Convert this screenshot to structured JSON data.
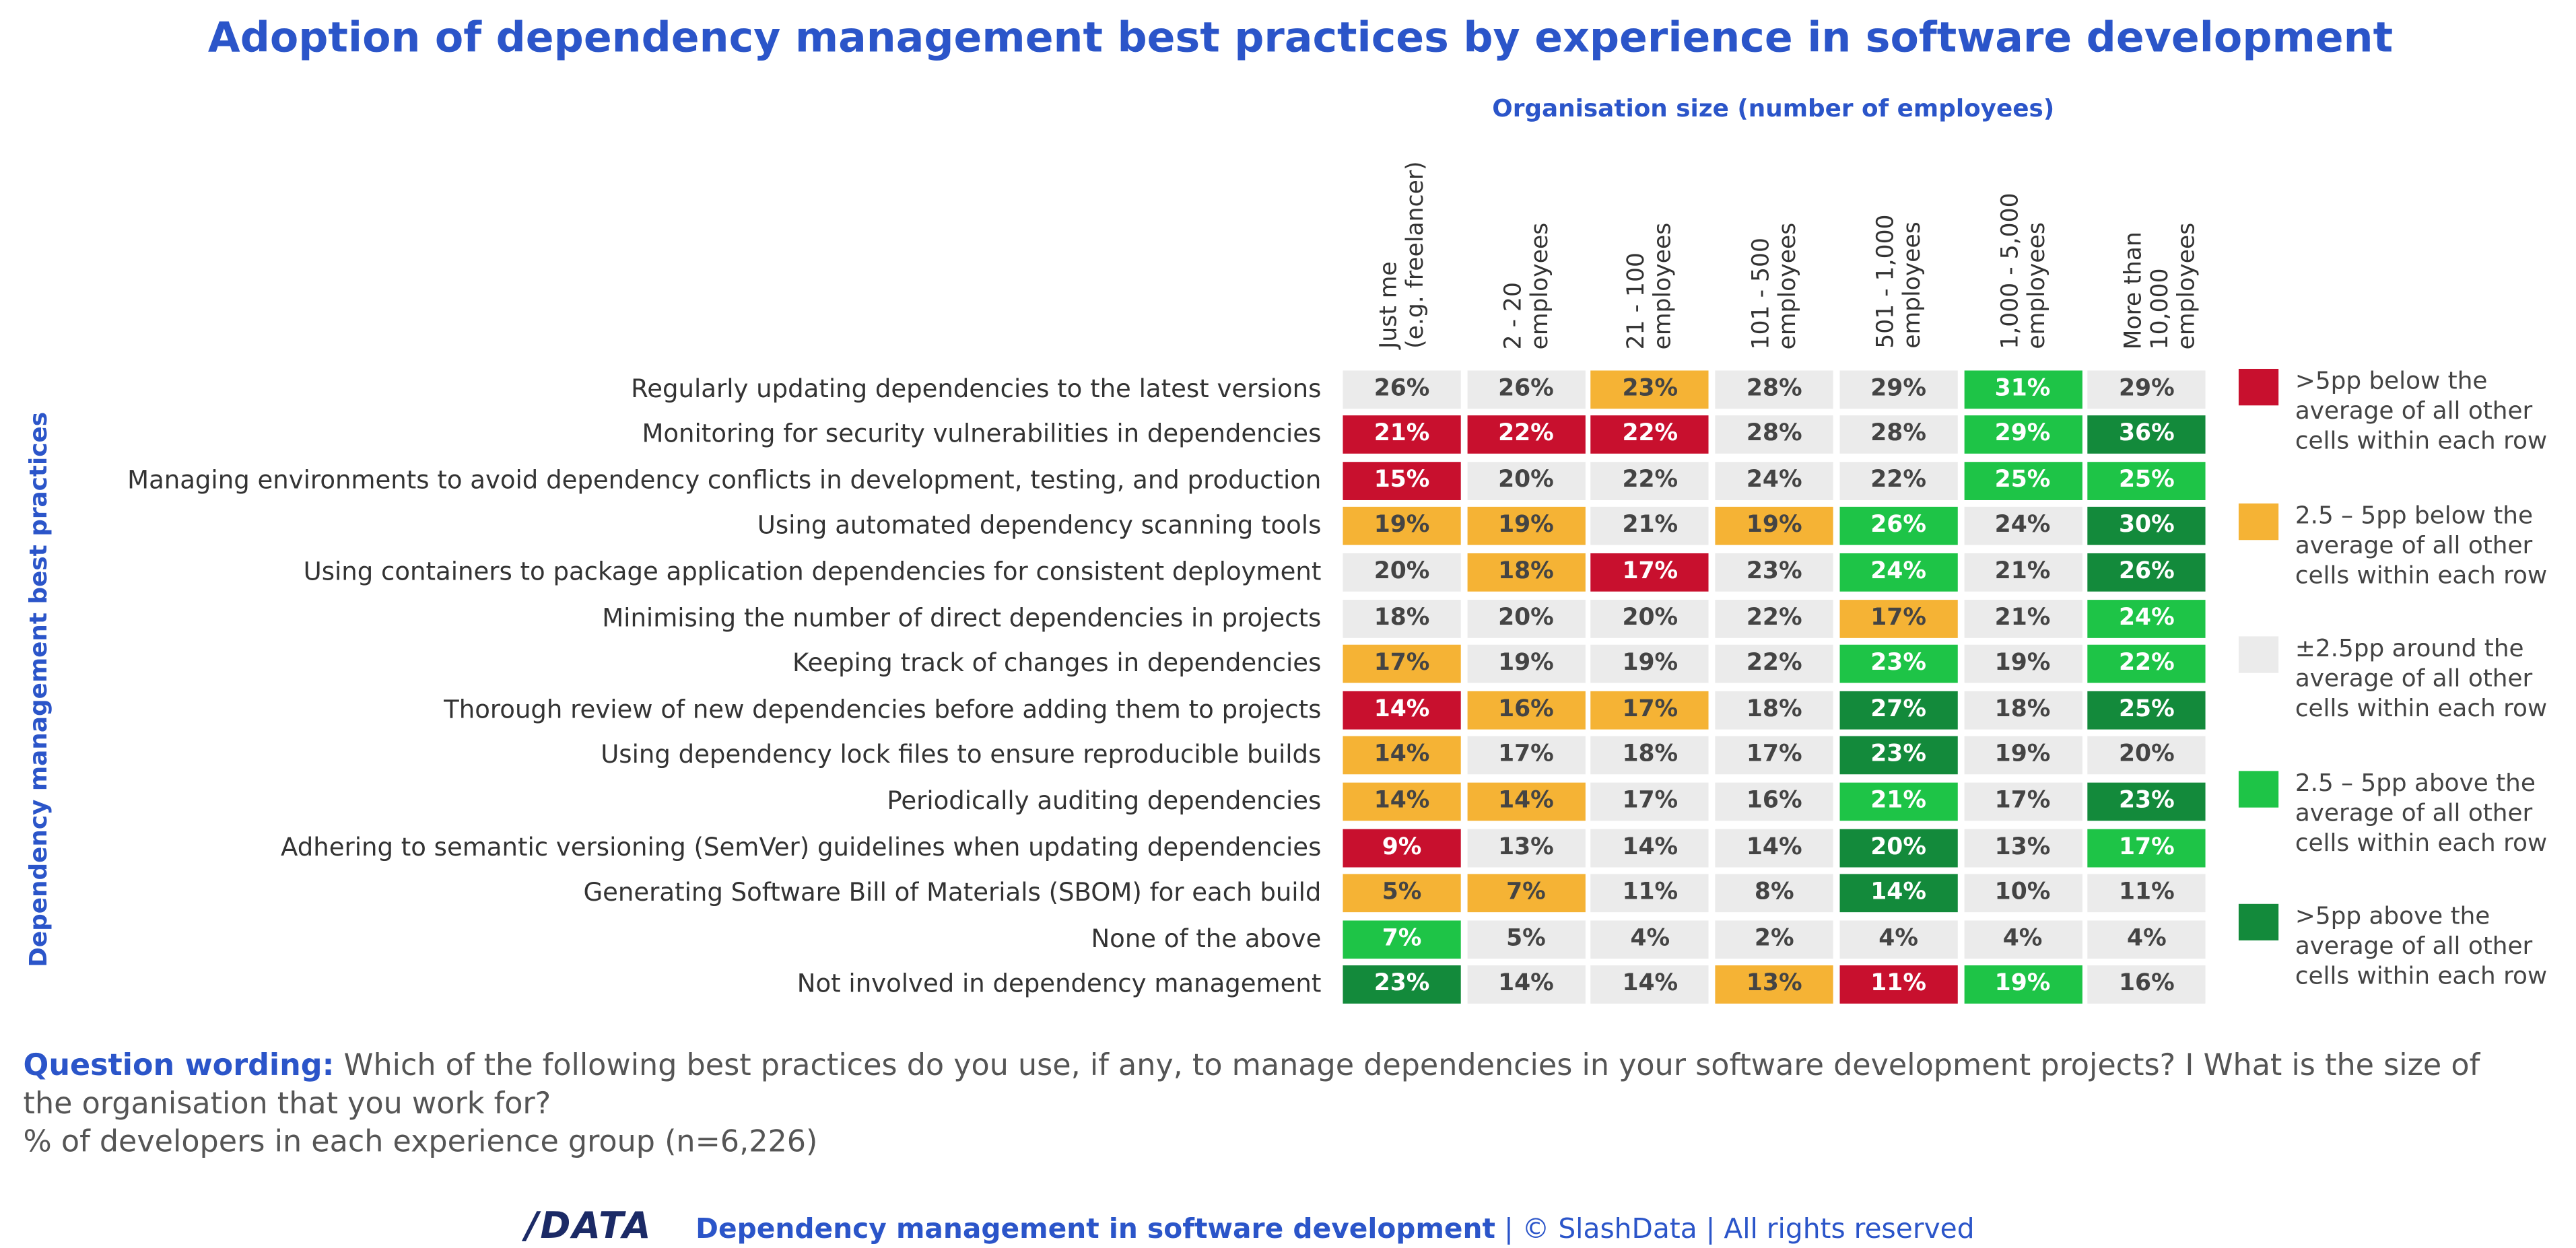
{
  "chart_data": {
    "type": "heatmap",
    "title": "Adoption of dependency management best practices by experience in software development",
    "x_label": "Organisation size (number of employees)",
    "y_label": "Dependency management best practices",
    "columns": [
      "Just me\n(e.g. freelancer)",
      "2 - 20\nemployees",
      "21 - 100\nemployees",
      "101 - 500\nemployees",
      "501 - 1,000\nemployees",
      "1,000 - 5,000\nemployees",
      "More than\n10,000\nemployees"
    ],
    "legend": [
      {
        "label": ">5pp below the\naverage of all other\ncells within each row",
        "color": "#c8102e"
      },
      {
        "label": "2.5 – 5pp below the\naverage of all other\ncells within each row",
        "color": "#f5b335"
      },
      {
        "label": "±2.5pp around the\naverage of all other\ncells within each row",
        "color": "#ebebeb"
      },
      {
        "label": "2.5 – 5pp above the\naverage of all other\ncells within each row",
        "color": "#1ec447"
      },
      {
        "label": ">5pp above the\naverage of all other\ncells within each row",
        "color": "#138a3b"
      }
    ],
    "series": [
      {
        "name": "Regularly updating dependencies to the latest versions",
        "values": [
          26,
          26,
          23,
          28,
          29,
          31,
          29
        ],
        "value_labels": [
          "26%",
          "26%",
          "23%",
          "28%",
          "29%",
          "31%",
          "29%"
        ],
        "colors": [
          "#ebebeb",
          "#ebebeb",
          "#f5b335",
          "#ebebeb",
          "#ebebeb",
          "#1ec447",
          "#ebebeb"
        ]
      },
      {
        "name": "Monitoring for security vulnerabilities in dependencies",
        "values": [
          21,
          22,
          22,
          28,
          28,
          29,
          36
        ],
        "value_labels": [
          "21%",
          "22%",
          "22%",
          "28%",
          "28%",
          "29%",
          "36%"
        ],
        "colors": [
          "#c8102e",
          "#c8102e",
          "#c8102e",
          "#ebebeb",
          "#ebebeb",
          "#1ec447",
          "#138a3b"
        ]
      },
      {
        "name": "Managing environments to avoid dependency conflicts in development, testing, and production",
        "values": [
          15,
          20,
          22,
          24,
          22,
          25,
          25
        ],
        "value_labels": [
          "15%",
          "20%",
          "22%",
          "24%",
          "22%",
          "25%",
          "25%"
        ],
        "colors": [
          "#c8102e",
          "#ebebeb",
          "#ebebeb",
          "#ebebeb",
          "#ebebeb",
          "#1ec447",
          "#1ec447"
        ]
      },
      {
        "name": "Using automated dependency scanning tools",
        "values": [
          19,
          19,
          21,
          19,
          26,
          24,
          30
        ],
        "value_labels": [
          "19%",
          "19%",
          "21%",
          "19%",
          "26%",
          "24%",
          "30%"
        ],
        "colors": [
          "#f5b335",
          "#f5b335",
          "#ebebeb",
          "#f5b335",
          "#1ec447",
          "#ebebeb",
          "#138a3b"
        ]
      },
      {
        "name": "Using containers to package application dependencies for consistent deployment",
        "values": [
          20,
          18,
          17,
          23,
          24,
          21,
          26
        ],
        "value_labels": [
          "20%",
          "18%",
          "17%",
          "23%",
          "24%",
          "21%",
          "26%"
        ],
        "colors": [
          "#ebebeb",
          "#f5b335",
          "#c8102e",
          "#ebebeb",
          "#1ec447",
          "#ebebeb",
          "#138a3b"
        ]
      },
      {
        "name": "Minimising the number of direct dependencies in projects",
        "values": [
          18,
          20,
          20,
          22,
          17,
          21,
          24
        ],
        "value_labels": [
          "18%",
          "20%",
          "20%",
          "22%",
          "17%",
          "21%",
          "24%"
        ],
        "colors": [
          "#ebebeb",
          "#ebebeb",
          "#ebebeb",
          "#ebebeb",
          "#f5b335",
          "#ebebeb",
          "#1ec447"
        ]
      },
      {
        "name": "Keeping track of changes in dependencies",
        "values": [
          17,
          19,
          19,
          22,
          23,
          19,
          22
        ],
        "value_labels": [
          "17%",
          "19%",
          "19%",
          "22%",
          "23%",
          "19%",
          "22%"
        ],
        "colors": [
          "#f5b335",
          "#ebebeb",
          "#ebebeb",
          "#ebebeb",
          "#1ec447",
          "#ebebeb",
          "#1ec447"
        ]
      },
      {
        "name": "Thorough review of new dependencies before adding them to projects",
        "values": [
          14,
          16,
          17,
          18,
          27,
          18,
          25
        ],
        "value_labels": [
          "14%",
          "16%",
          "17%",
          "18%",
          "27%",
          "18%",
          "25%"
        ],
        "colors": [
          "#c8102e",
          "#f5b335",
          "#f5b335",
          "#ebebeb",
          "#138a3b",
          "#ebebeb",
          "#138a3b"
        ]
      },
      {
        "name": "Using dependency lock files to ensure reproducible builds",
        "values": [
          14,
          17,
          18,
          17,
          23,
          19,
          20
        ],
        "value_labels": [
          "14%",
          "17%",
          "18%",
          "17%",
          "23%",
          "19%",
          "20%"
        ],
        "colors": [
          "#f5b335",
          "#ebebeb",
          "#ebebeb",
          "#ebebeb",
          "#138a3b",
          "#ebebeb",
          "#ebebeb"
        ]
      },
      {
        "name": "Periodically auditing dependencies",
        "values": [
          14,
          14,
          17,
          16,
          21,
          17,
          23
        ],
        "value_labels": [
          "14%",
          "14%",
          "17%",
          "16%",
          "21%",
          "17%",
          "23%"
        ],
        "colors": [
          "#f5b335",
          "#f5b335",
          "#ebebeb",
          "#ebebeb",
          "#1ec447",
          "#ebebeb",
          "#138a3b"
        ]
      },
      {
        "name": "Adhering to semantic versioning (SemVer) guidelines when updating dependencies",
        "values": [
          9,
          13,
          14,
          14,
          20,
          13,
          17
        ],
        "value_labels": [
          "9%",
          "13%",
          "14%",
          "14%",
          "20%",
          "13%",
          "17%"
        ],
        "colors": [
          "#c8102e",
          "#ebebeb",
          "#ebebeb",
          "#ebebeb",
          "#138a3b",
          "#ebebeb",
          "#1ec447"
        ]
      },
      {
        "name": "Generating Software Bill of Materials (SBOM) for each build",
        "values": [
          5,
          7,
          11,
          8,
          14,
          10,
          11
        ],
        "value_labels": [
          "5%",
          "7%",
          "11%",
          "8%",
          "14%",
          "10%",
          "11%"
        ],
        "colors": [
          "#f5b335",
          "#f5b335",
          "#ebebeb",
          "#ebebeb",
          "#138a3b",
          "#ebebeb",
          "#ebebeb"
        ]
      },
      {
        "name": "None of the above",
        "values": [
          7,
          5,
          4,
          2,
          4,
          4,
          4
        ],
        "value_labels": [
          "7%",
          "5%",
          "4%",
          "2%",
          "4%",
          "4%",
          "4%"
        ],
        "colors": [
          "#1ec447",
          "#ebebeb",
          "#ebebeb",
          "#ebebeb",
          "#ebebeb",
          "#ebebeb",
          "#ebebeb"
        ]
      },
      {
        "name": "Not involved in dependency management",
        "values": [
          23,
          14,
          14,
          13,
          11,
          19,
          16
        ],
        "value_labels": [
          "23%",
          "14%",
          "14%",
          "13%",
          "11%",
          "19%",
          "16%"
        ],
        "colors": [
          "#138a3b",
          "#ebebeb",
          "#ebebeb",
          "#f5b335",
          "#c8102e",
          "#1ec447",
          "#ebebeb"
        ]
      }
    ]
  },
  "notes": {
    "question_label": "Question wording:",
    "question_text": "Which of the following best practices do you use, if any, to manage dependencies in your software development projects? I What is the size of the organisation that you work for?",
    "base": "% of developers in each experience group (n=6,226)"
  },
  "footer": {
    "logo": "/DATA",
    "title": "Dependency management in software development",
    "rights": "| © SlashData | All rights reserved"
  }
}
